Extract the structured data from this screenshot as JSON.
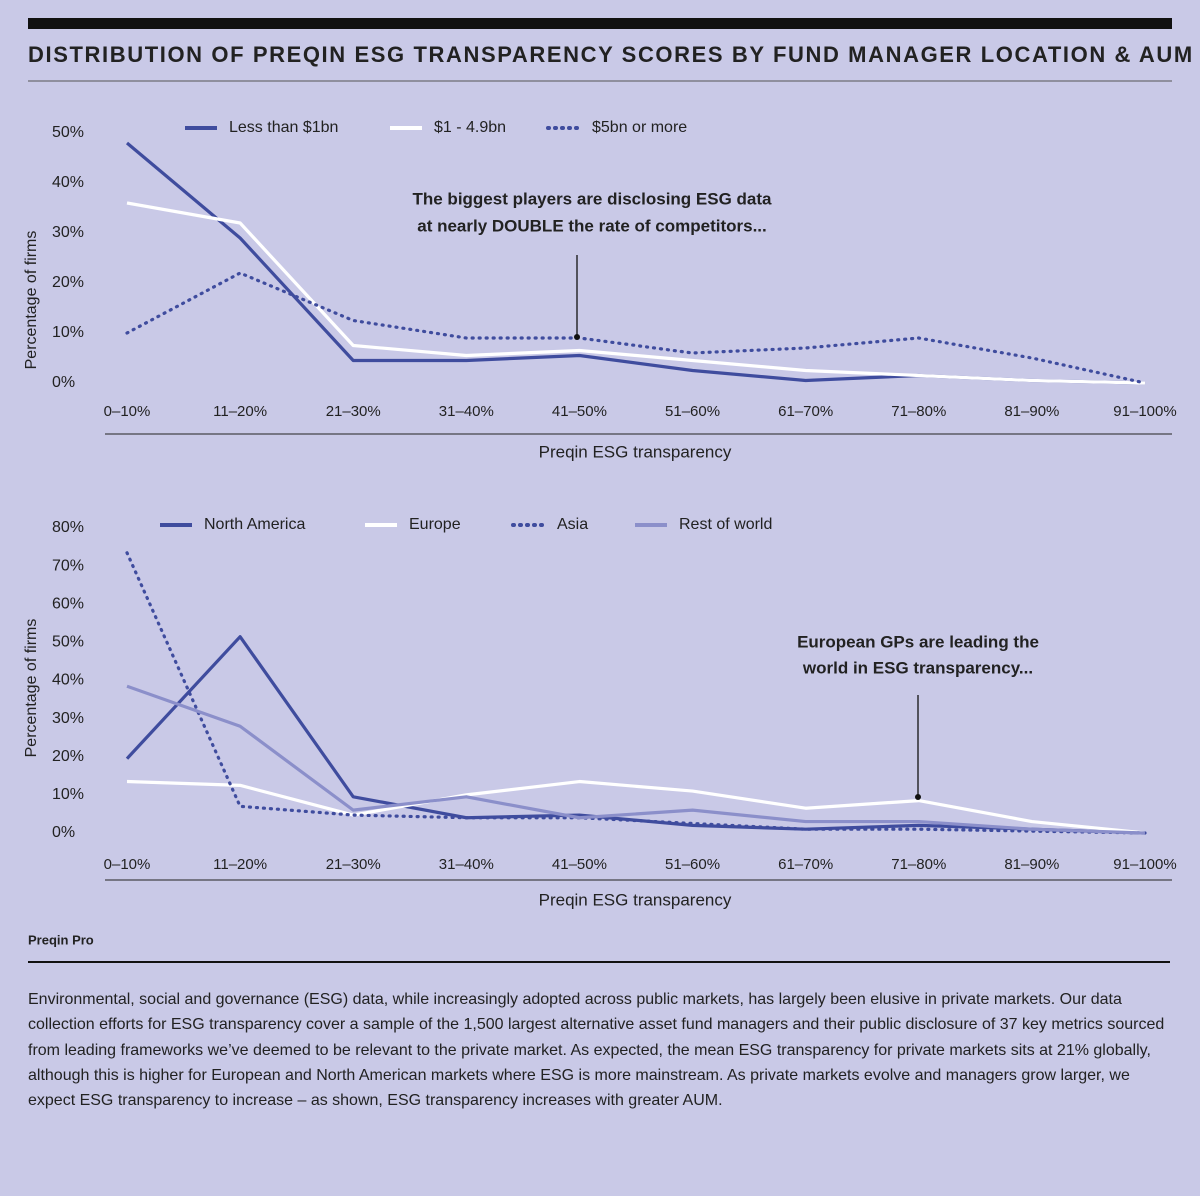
{
  "title": "DISTRIBUTION OF PREQIN ESG TRANSPARENCY SCORES BY FUND MANAGER LOCATION & AUM",
  "source": "Preqin Pro",
  "body": "Environmental, social and governance (ESG) data, while increasingly adopted across public markets, has largely been elusive in private markets. Our data collection efforts for ESG transparency cover a sample of the 1,500 largest alternative asset fund managers and their public disclosure of 37 key metrics sourced from leading frameworks we’ve deemed to be relevant to the private market. As expected, the mean ESG transparency for private markets sits at 21% globally, although this is higher for European and North American markets where ESG is more mainstream. As private markets evolve and managers grow larger, we expect ESG transparency to increase – as shown, ESG transparency increases with greater AUM.",
  "chart_data": [
    {
      "type": "line",
      "x_label": "Preqin ESG transparency",
      "y_label": "Percentage of firms",
      "annotation": [
        "The biggest players are disclosing ESG data",
        "at nearly DOUBLE the rate of competitors..."
      ],
      "categories": [
        "0–10%",
        "11–20%",
        "21–30%",
        "31–40%",
        "41–50%",
        "51–60%",
        "61–70%",
        "71–80%",
        "81–90%",
        "91–100%"
      ],
      "ylim": [
        0,
        50
      ],
      "yticks": [
        {
          "value": 0,
          "label": "0%"
        },
        {
          "value": 10,
          "label": "10%"
        },
        {
          "value": 20,
          "label": "20%"
        },
        {
          "value": 30,
          "label": "30%"
        },
        {
          "value": 40,
          "label": "40%"
        },
        {
          "value": 50,
          "label": "50%"
        }
      ],
      "series": [
        {
          "name": "Less than $1bn",
          "color": "#3f4c9e",
          "style": "solid",
          "values": [
            48,
            29,
            4.5,
            4.5,
            5.5,
            2.5,
            0.5,
            1.5,
            0.5,
            0
          ]
        },
        {
          "name": "$1 - 4.9bn",
          "color": "#ffffff",
          "style": "solid",
          "values": [
            36,
            32,
            7.5,
            5.5,
            6.5,
            4.5,
            2.5,
            1.5,
            0.5,
            0
          ]
        },
        {
          "name": "$5bn or more",
          "color": "#3f4c9e",
          "style": "dotted",
          "values": [
            10,
            22,
            12.5,
            9,
            9,
            6,
            7,
            9,
            5,
            0
          ]
        }
      ]
    },
    {
      "type": "line",
      "x_label": "Preqin ESG transparency",
      "y_label": "Percentage of firms",
      "annotation": [
        "European GPs are leading the",
        "world in ESG transparency..."
      ],
      "categories": [
        "0–10%",
        "11–20%",
        "21–30%",
        "31–40%",
        "41–50%",
        "51–60%",
        "61–70%",
        "71–80%",
        "81–90%",
        "91–100%"
      ],
      "ylim": [
        0,
        80
      ],
      "yticks": [
        {
          "value": 0,
          "label": "0%"
        },
        {
          "value": 10,
          "label": "10%"
        },
        {
          "value": 20,
          "label": "20%"
        },
        {
          "value": 30,
          "label": "30%"
        },
        {
          "value": 40,
          "label": "40%"
        },
        {
          "value": 50,
          "label": "50%"
        },
        {
          "value": 60,
          "label": "60%"
        },
        {
          "value": 70,
          "label": "70%"
        },
        {
          "value": 80,
          "label": "80%"
        }
      ],
      "series": [
        {
          "name": "North America",
          "color": "#3f4c9e",
          "style": "solid",
          "values": [
            19.5,
            51.5,
            9.5,
            4,
            4.7,
            2,
            1,
            2,
            1,
            0
          ]
        },
        {
          "name": "Europe",
          "color": "#ffffff",
          "style": "solid",
          "values": [
            13.5,
            12.5,
            4.7,
            10,
            13.5,
            11,
            6.5,
            8.5,
            3,
            0
          ]
        },
        {
          "name": "Asia",
          "color": "#3f4c9e",
          "style": "dotted",
          "values": [
            73.5,
            7,
            4.7,
            4,
            4,
            2.5,
            1,
            1,
            0.5,
            0
          ]
        },
        {
          "name": "Rest of world",
          "color": "#8b8fca",
          "style": "solid",
          "values": [
            38.5,
            28,
            6,
            9.5,
            4,
            6,
            3,
            3,
            1,
            0
          ]
        }
      ]
    }
  ]
}
